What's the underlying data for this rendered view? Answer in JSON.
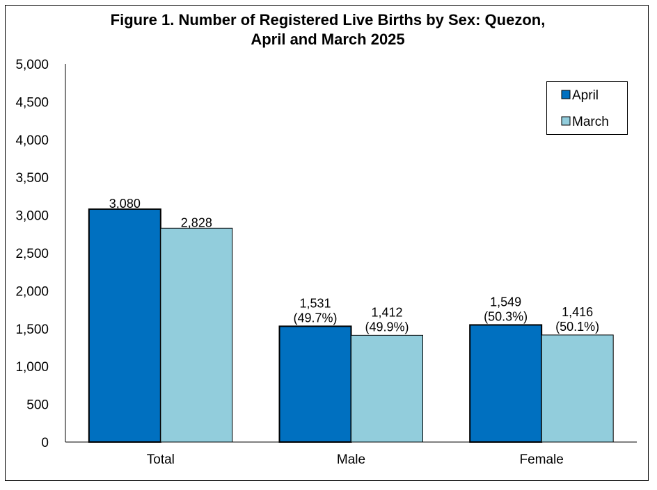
{
  "chart_data": {
    "type": "bar",
    "title": "Figure 1. Number of Registered Live Births by Sex: Quezon,",
    "subtitle": "April and March 2025",
    "xlabel": "",
    "ylabel": "",
    "categories": [
      "Total",
      "Male",
      "Female"
    ],
    "series": [
      {
        "name": "April",
        "color": "#0070C0",
        "values": [
          3080,
          1531,
          1549
        ],
        "labels": [
          "3,080",
          "1,531",
          "1,549"
        ],
        "sublabels": [
          "",
          "(49.7%)",
          "(50.3%)"
        ]
      },
      {
        "name": "March",
        "color": "#92CDDC",
        "values": [
          2828,
          1412,
          1416
        ],
        "labels": [
          "2,828",
          "1,412",
          "1,416"
        ],
        "sublabels": [
          "",
          "(49.9%)",
          "(50.1%)"
        ]
      }
    ],
    "ylim": [
      0,
      5000
    ],
    "yticks": [
      0,
      500,
      1000,
      1500,
      2000,
      2500,
      3000,
      3500,
      4000,
      4500,
      5000
    ],
    "ytick_labels": [
      "0",
      "500",
      "1,000",
      "1,500",
      "2,000",
      "2,500",
      "3,000",
      "3,500",
      "4,000",
      "4,500",
      "5,000"
    ],
    "grid": false,
    "legend_position": "top-right"
  }
}
